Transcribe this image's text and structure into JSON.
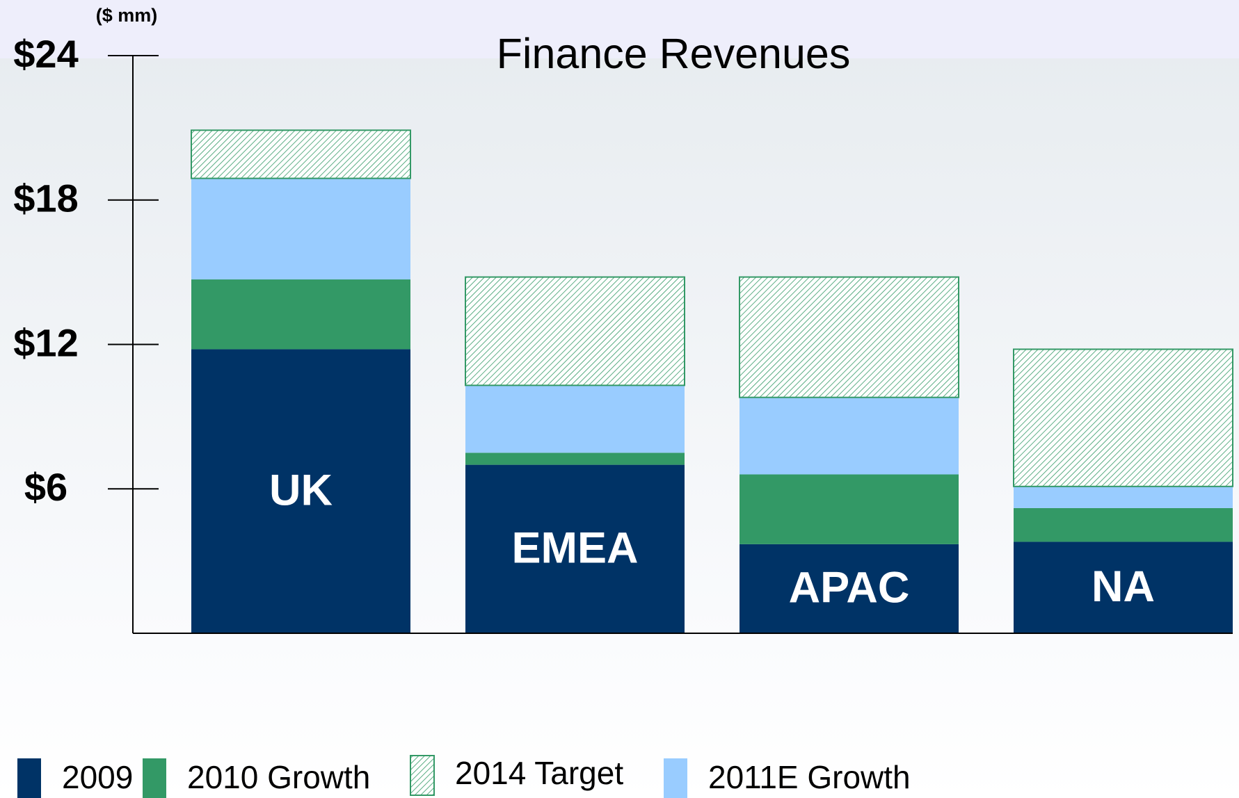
{
  "chart_data": {
    "type": "stacked_bar",
    "title": "Finance Revenues",
    "y_label": "($ mm)",
    "categories": [
      "UK",
      "EMEA",
      "APAC",
      "NA"
    ],
    "series": [
      {
        "name": "2009",
        "color": "#003366",
        "values": [
          11.8,
          7.0,
          3.7,
          3.8
        ]
      },
      {
        "name": "2010 Growth",
        "color": "#339966",
        "values": [
          2.9,
          0.5,
          2.9,
          1.4
        ]
      },
      {
        "name": "2014 Target",
        "color": "#339966",
        "pattern": "hatch",
        "values": [
          2.0,
          4.5,
          5.0,
          5.7
        ]
      },
      {
        "name": "2011E Growth",
        "color": "#99ccff",
        "values": [
          4.2,
          2.8,
          3.2,
          0.9
        ]
      }
    ],
    "ylim": [
      0,
      24
    ],
    "yticks": [
      {
        "value": 6,
        "label": "$6"
      },
      {
        "value": 12,
        "label": "$12"
      },
      {
        "value": 18,
        "label": "$18"
      },
      {
        "value": 24,
        "label": "$24"
      }
    ]
  }
}
